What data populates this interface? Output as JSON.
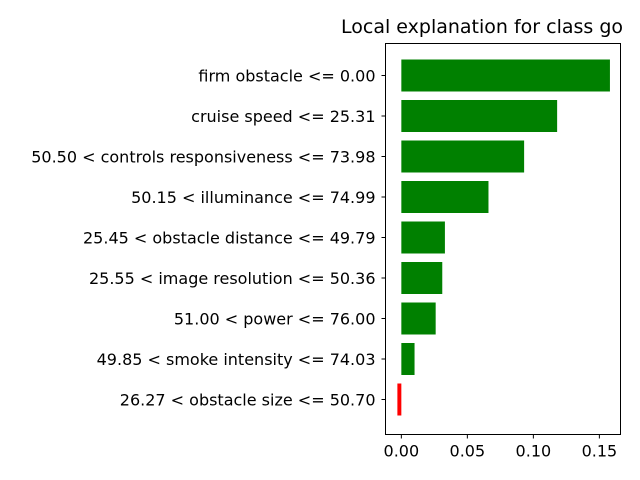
{
  "chart_data": {
    "type": "bar",
    "orientation": "horizontal",
    "title": "Local explanation for class go",
    "xlabel": "",
    "ylabel": "",
    "categories": [
      "firm obstacle <= 0.00",
      "cruise speed <= 25.31",
      "50.50 < controls responsiveness <= 73.98",
      "50.15 < illuminance <= 74.99",
      "25.45 < obstacle distance <= 49.79",
      "25.55 < image resolution <= 50.36",
      "51.00 < power <= 76.00",
      "49.85 < smoke intensity <= 74.03",
      "26.27 < obstacle size <= 50.70"
    ],
    "values": [
      0.158,
      0.118,
      0.093,
      0.066,
      0.033,
      0.031,
      0.026,
      0.01,
      -0.003
    ],
    "xlim": [
      -0.012,
      0.166
    ],
    "xticks": [
      "0.00",
      "0.05",
      "0.10",
      "0.15"
    ],
    "xtick_values": [
      0.0,
      0.05,
      0.1,
      0.15
    ],
    "positive_color": "#008000",
    "negative_color": "#ff0000",
    "grid": false,
    "legend": "none"
  }
}
